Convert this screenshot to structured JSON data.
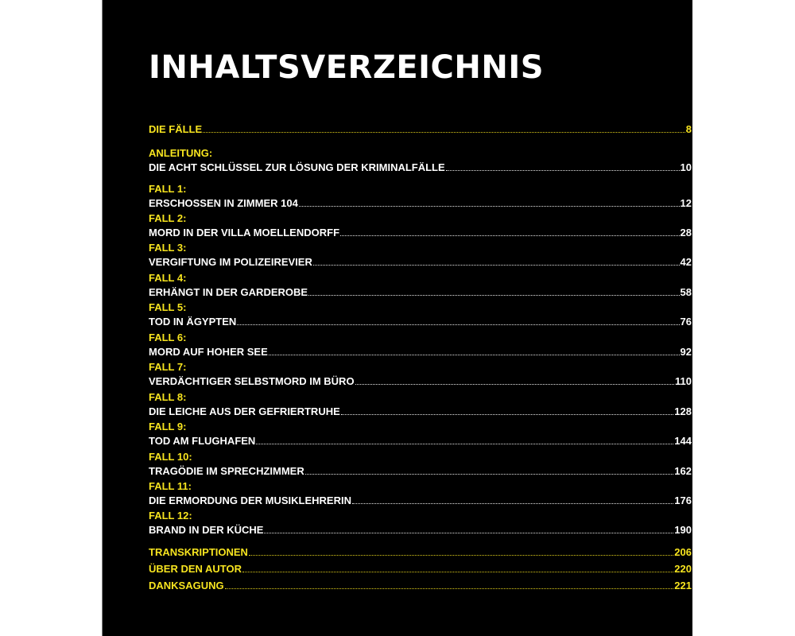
{
  "title": "INHALTSVERZEICHNIS",
  "colors": {
    "accent": "#f7e41f",
    "background": "#000000",
    "text": "#ffffff"
  },
  "entries": [
    {
      "label": null,
      "title": "DIE FÄLLE",
      "page": "8",
      "yellow": true
    },
    {
      "label": "ANLEITUNG:",
      "title": "DIE ACHT SCHLÜSSEL ZUR LÖSUNG DER KRIMINALFÄLLE",
      "page": "10"
    },
    {
      "label": "FALL 1:",
      "title": "ERSCHOSSEN IN ZIMMER 104",
      "page": "12"
    },
    {
      "label": "FALL 2:",
      "title": "MORD IN DER VILLA MOELLENDORFF",
      "page": "28"
    },
    {
      "label": "FALL 3:",
      "title": "VERGIFTUNG IM POLIZEIREVIER",
      "page": "42"
    },
    {
      "label": "FALL 4:",
      "title": "ERHÄNGT IN DER GARDEROBE",
      "page": "58"
    },
    {
      "label": "FALL 5:",
      "title": "TOD IN ÄGYPTEN",
      "page": "76"
    },
    {
      "label": "FALL 6:",
      "title": "MORD AUF HOHER SEE",
      "page": "92"
    },
    {
      "label": "FALL 7:",
      "title": "VERDÄCHTIGER SELBSTMORD IM BÜRO",
      "page": "110"
    },
    {
      "label": "FALL 8:",
      "title": "DIE LEICHE AUS DER GEFRIERTRUHE",
      "page": "128"
    },
    {
      "label": "FALL 9:",
      "title": "TOD AM FLUGHAFEN",
      "page": "144"
    },
    {
      "label": "FALL 10:",
      "title": "TRAGÖDIE IM SPRECHZIMMER",
      "page": "162"
    },
    {
      "label": "FALL 11:",
      "title": "DIE ERMORDUNG DER MUSIKLEHRERIN",
      "page": "176"
    },
    {
      "label": "FALL 12:",
      "title": "BRAND IN DER KÜCHE",
      "page": "190"
    },
    {
      "label": null,
      "title": "TRANSKRIPTIONEN",
      "page": "206",
      "yellow": true
    },
    {
      "label": null,
      "title": "ÜBER DEN AUTOR",
      "page": "220",
      "yellow": true
    },
    {
      "label": null,
      "title": "DANKSAGUNG",
      "page": "221",
      "yellow": true
    }
  ]
}
